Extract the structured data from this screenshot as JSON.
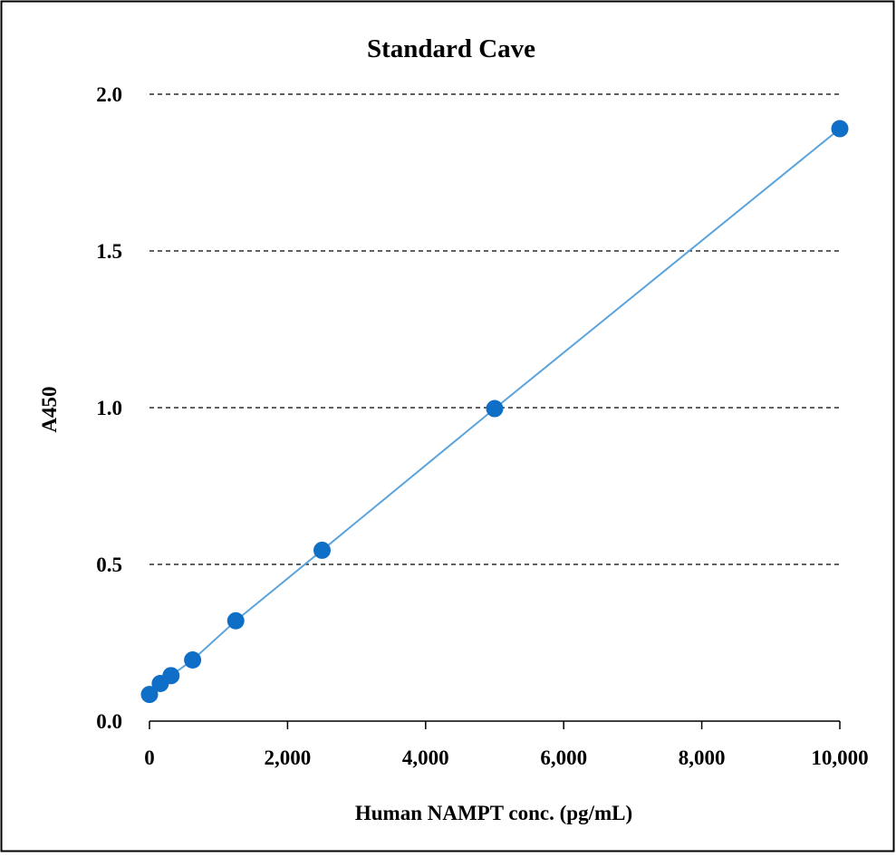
{
  "chart_data": {
    "type": "scatter",
    "title": "Standard Cave",
    "xlabel": "Human NAMPT conc. (pg/mL)",
    "ylabel": "A450",
    "xlim": [
      0,
      10000
    ],
    "ylim": [
      0,
      2.0
    ],
    "x_ticks": [
      "0",
      "2,000",
      "4,000",
      "6,000",
      "8,000",
      "10,000"
    ],
    "y_ticks": [
      "0.0",
      "0.5",
      "1.0",
      "1.5",
      "2.0"
    ],
    "grid": "horizontal dashed",
    "line": "connected",
    "series": [
      {
        "x": [
          0,
          156,
          312,
          625,
          1250,
          2500,
          5000,
          10000
        ],
        "y": [
          0.085,
          0.12,
          0.145,
          0.195,
          0.32,
          0.545,
          0.997,
          1.89
        ]
      }
    ],
    "colors": {
      "marker": "#0f6fc6",
      "line": "#5aa3dc",
      "grid": "#000000"
    }
  }
}
